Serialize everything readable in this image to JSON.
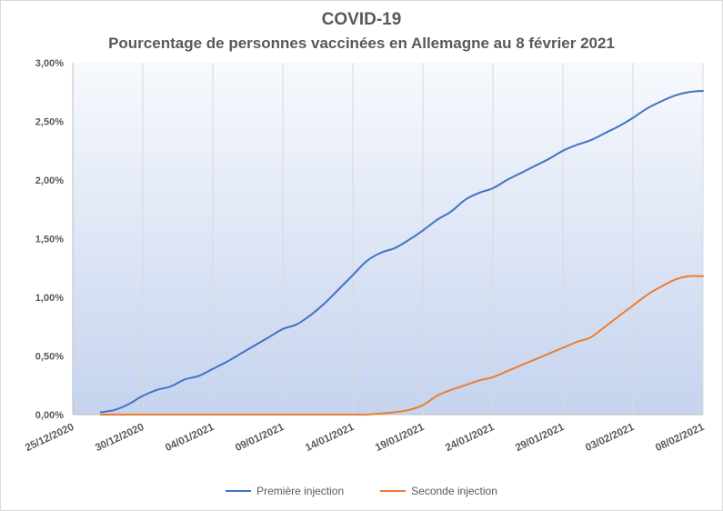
{
  "chart_data": {
    "type": "line",
    "title": "COVID-19",
    "subtitle": "Pourcentage de personnes vaccinées en Allemagne au 8 février 2021",
    "ylim": [
      0,
      3.0
    ],
    "ytick_values": [
      0,
      0.5,
      1.0,
      1.5,
      2.0,
      2.5,
      3.0
    ],
    "ytick_labels": [
      "0,00%",
      "0,50%",
      "1,00%",
      "1,50%",
      "2,00%",
      "2,50%",
      "3,00%"
    ],
    "xlim": [
      "2020-12-25",
      "2021-02-08"
    ],
    "xtick_labels": [
      "25/12/2020",
      "30/12/2020",
      "04/01/2021",
      "09/01/2021",
      "14/01/2021",
      "19/01/2021",
      "24/01/2021",
      "29/01/2021",
      "03/02/2021",
      "08/02/2021"
    ],
    "grid": "vertical",
    "legend_position": "bottom",
    "x": [
      "2020-12-27",
      "2020-12-28",
      "2020-12-29",
      "2020-12-30",
      "2020-12-31",
      "2021-01-01",
      "2021-01-02",
      "2021-01-03",
      "2021-01-04",
      "2021-01-05",
      "2021-01-06",
      "2021-01-07",
      "2021-01-08",
      "2021-01-09",
      "2021-01-10",
      "2021-01-11",
      "2021-01-12",
      "2021-01-13",
      "2021-01-14",
      "2021-01-15",
      "2021-01-16",
      "2021-01-17",
      "2021-01-18",
      "2021-01-19",
      "2021-01-20",
      "2021-01-21",
      "2021-01-22",
      "2021-01-23",
      "2021-01-24",
      "2021-01-25",
      "2021-01-26",
      "2021-01-27",
      "2021-01-28",
      "2021-01-29",
      "2021-01-30",
      "2021-01-31",
      "2021-02-01",
      "2021-02-02",
      "2021-02-03",
      "2021-02-04",
      "2021-02-05",
      "2021-02-06",
      "2021-02-07",
      "2021-02-08"
    ],
    "series": [
      {
        "name": "Première injection",
        "color": "#4472C4",
        "values": [
          0.02,
          0.04,
          0.09,
          0.16,
          0.21,
          0.24,
          0.3,
          0.33,
          0.39,
          0.45,
          0.52,
          0.59,
          0.66,
          0.73,
          0.77,
          0.85,
          0.95,
          1.07,
          1.19,
          1.31,
          1.38,
          1.42,
          1.49,
          1.57,
          1.66,
          1.73,
          1.83,
          1.89,
          1.93,
          2.0,
          2.06,
          2.12,
          2.18,
          2.25,
          2.3,
          2.34,
          2.4,
          2.46,
          2.53,
          2.61,
          2.67,
          2.72,
          2.75,
          2.76
        ]
      },
      {
        "name": "Seconde injection",
        "color": "#ED7D31",
        "values": [
          0,
          0,
          0,
          0,
          0,
          0,
          0,
          0,
          0,
          0,
          0,
          0,
          0,
          0,
          0,
          0,
          0,
          0,
          0,
          0,
          0.01,
          0.02,
          0.04,
          0.08,
          0.16,
          0.21,
          0.25,
          0.29,
          0.32,
          0.37,
          0.42,
          0.47,
          0.52,
          0.57,
          0.62,
          0.66,
          0.75,
          0.84,
          0.93,
          1.02,
          1.09,
          1.15,
          1.18,
          1.18
        ]
      }
    ]
  }
}
